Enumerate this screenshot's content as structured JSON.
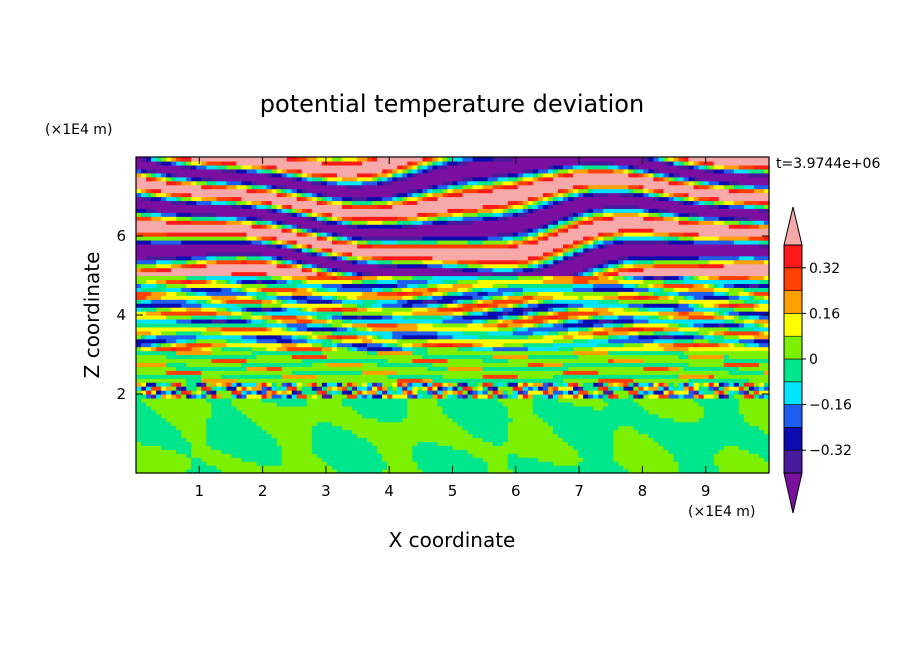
{
  "chart_data": {
    "type": "heatmap",
    "title": "potential temperature deviation",
    "time_label": "t=3.9744e+06",
    "xlabel": "X coordinate",
    "ylabel": "Z coordinate",
    "x_unit": "(×1E4 m)",
    "y_unit": "(×1E4 m)",
    "xlim": [
      0,
      10
    ],
    "ylim": [
      0,
      8
    ],
    "x_ticks": [
      1,
      2,
      3,
      4,
      5,
      6,
      7,
      8,
      9
    ],
    "y_ticks": [
      2,
      4,
      6
    ],
    "colorbar": {
      "levels": [
        -0.4,
        -0.32,
        -0.24,
        -0.16,
        -0.08,
        0,
        0.08,
        0.16,
        0.24,
        0.32,
        0.4
      ],
      "tick_labels": [
        "0.32",
        "0.16",
        "0",
        "−0.16",
        "−0.32"
      ],
      "tick_values": [
        0.32,
        0.16,
        0,
        -0.16,
        -0.32
      ],
      "colors": [
        "#7a0fa0",
        "#4a1a9c",
        "#0b0bb0",
        "#1f5ff0",
        "#00e5ff",
        "#00e68c",
        "#7df000",
        "#ffff00",
        "#ffa000",
        "#ff4000",
        "#ff1a1a",
        "#f7a8a8"
      ],
      "extend": "both"
    },
    "bands": [
      {
        "z": [
          0.0,
          1.95
        ],
        "pattern": "blobs",
        "value": 0.04
      },
      {
        "z": [
          1.95,
          2.3
        ],
        "pattern": "mixed",
        "value": 0.0
      },
      {
        "z": [
          2.3,
          3.1
        ],
        "pattern": "stripes",
        "value": 0.02
      },
      {
        "z": [
          3.1,
          5.0
        ],
        "pattern": "stripes",
        "value": 0.0
      },
      {
        "z": [
          5.0,
          8.0
        ],
        "pattern": "layers",
        "value": 0.0
      }
    ]
  }
}
